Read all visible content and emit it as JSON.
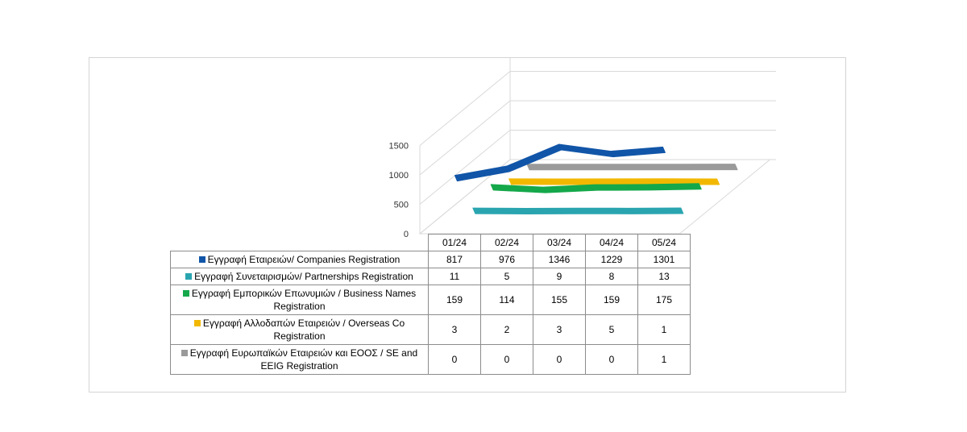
{
  "chart_data": {
    "type": "line",
    "style": "3d",
    "categories": [
      "01/24",
      "02/24",
      "03/24",
      "04/24",
      "05/24"
    ],
    "yticks": [
      0,
      500,
      1000,
      1500
    ],
    "ylim": [
      0,
      1500
    ],
    "grid": true,
    "legend": "table-bottom",
    "series": [
      {
        "name": "Εγγραφή  Εταιρειών/ Companies Registration",
        "color": "#1155a8",
        "values": [
          817,
          976,
          1346,
          1229,
          1301
        ]
      },
      {
        "name": "Εγγραφή  Συνεταιρισμών/ Partnerships Registration",
        "color": "#2aa5b0",
        "values": [
          11,
          5,
          9,
          8,
          13
        ]
      },
      {
        "name": "Εγγραφή  Εμπορικών  Επωνυμιών  / Business Names Registration",
        "color": "#14a84a",
        "values": [
          159,
          114,
          155,
          159,
          175
        ]
      },
      {
        "name": "Εγγραφή  Αλλοδαπών  Εταιρειών  / Overseas Co Registration",
        "color": "#f2b800",
        "values": [
          3,
          2,
          3,
          5,
          1
        ]
      },
      {
        "name": "Εγγραφή  Ευρωπαϊκών  Εταιρειών  και  ΕΟΟΣ  / SE and EEIG Registration",
        "color": "#9a9a9a",
        "values": [
          0,
          0,
          0,
          0,
          1
        ]
      }
    ]
  }
}
